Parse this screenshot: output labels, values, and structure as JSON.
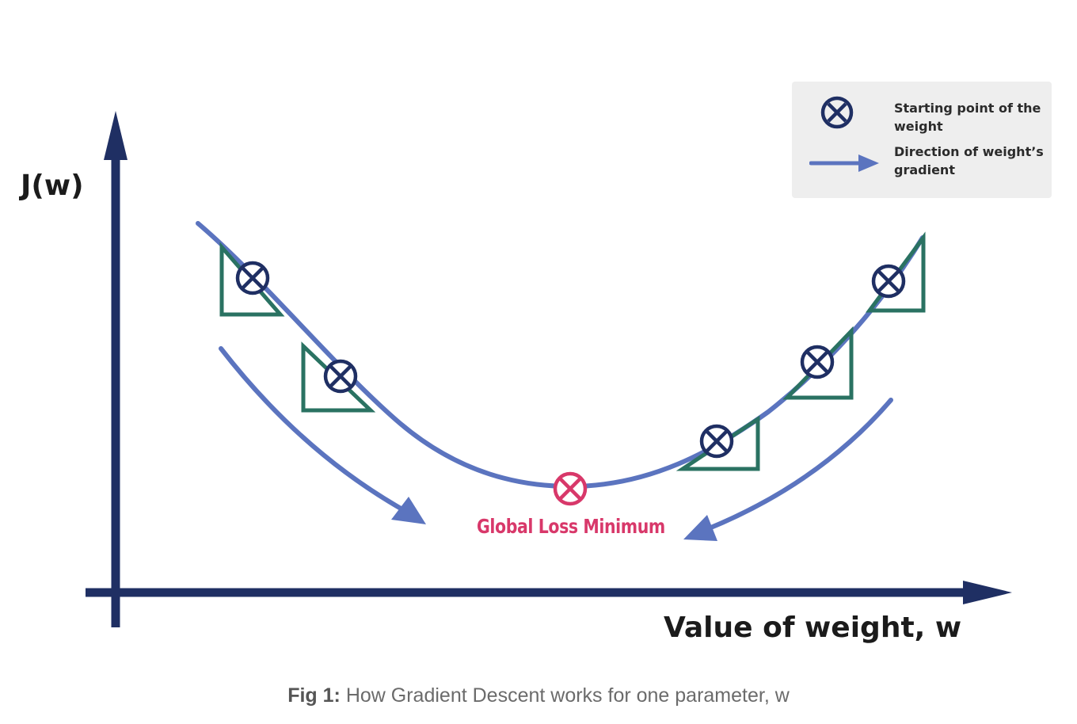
{
  "axes": {
    "y_label": "J(w)",
    "x_label": "Value of weight, w"
  },
  "legend": {
    "items": [
      {
        "icon": "circled-x-icon",
        "label": "Starting point of the weight"
      },
      {
        "icon": "arrow-right-icon",
        "label": "Direction of weight’s gradient"
      }
    ]
  },
  "minimum_label": "Global Loss Minimum",
  "caption": {
    "prefix": "Fig 1:",
    "text": " How Gradient Descent works for one parameter, w"
  },
  "colors": {
    "axis": "#1f2f63",
    "curve": "#5b74bf",
    "triangle": "#2a7262",
    "marker": "#1f2f63",
    "minimum": "#d8386a",
    "legend_bg": "#eeeeee"
  }
}
